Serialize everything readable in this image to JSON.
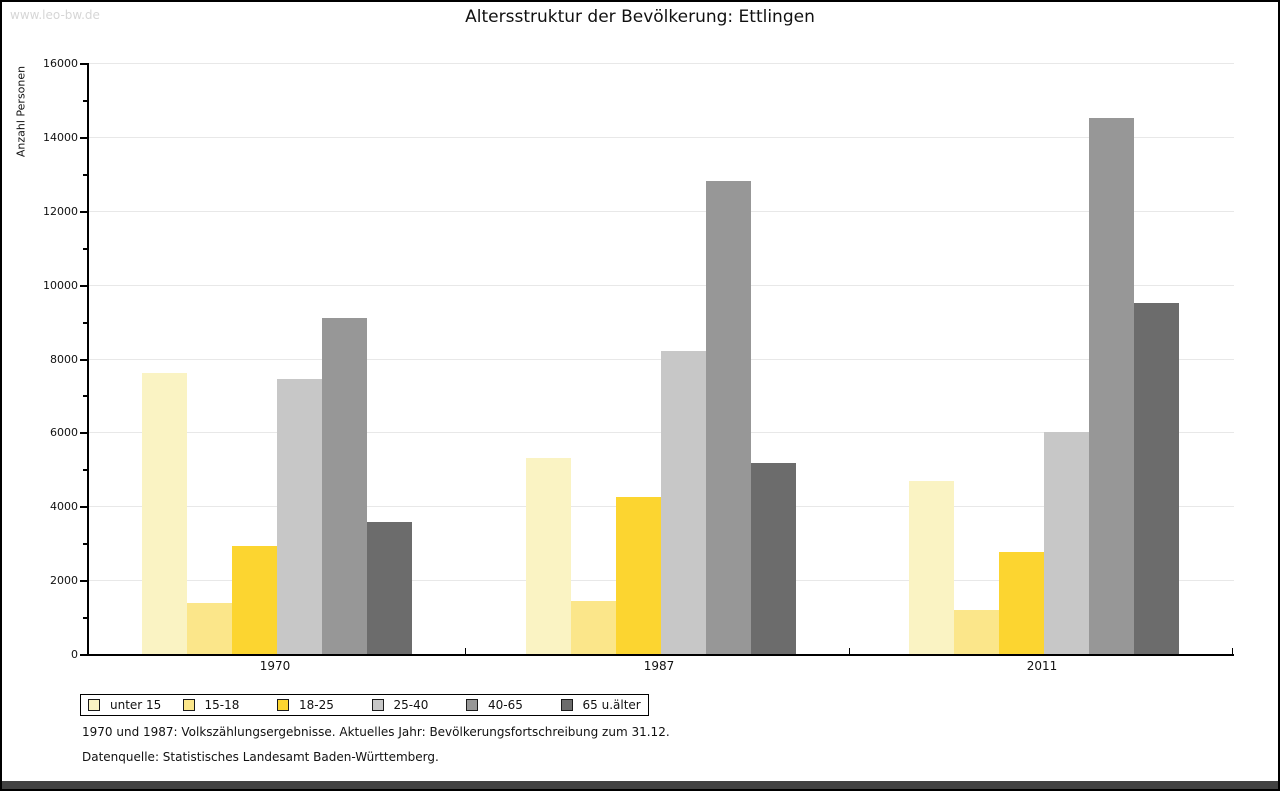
{
  "watermark": "www.leo-bw.de",
  "title": "Altersstruktur der Bevölkerung: Ettlingen",
  "chart_data": {
    "type": "bar",
    "title": "Altersstruktur der Bevölkerung: Ettlingen",
    "xlabel": "",
    "ylabel": "Anzahl Personen",
    "categories": [
      "1970",
      "1987",
      "2011"
    ],
    "series": [
      {
        "name": "unter 15",
        "color": "#FAF3C3",
        "values": [
          7600,
          5300,
          4690
        ]
      },
      {
        "name": "15-18",
        "color": "#FBE68A",
        "values": [
          1380,
          1430,
          1200
        ]
      },
      {
        "name": "18-25",
        "color": "#FCD530",
        "values": [
          2930,
          4250,
          2750
        ]
      },
      {
        "name": "25-40",
        "color": "#C7C7C7",
        "values": [
          7450,
          8200,
          6000
        ]
      },
      {
        "name": "40-65",
        "color": "#979797",
        "values": [
          9100,
          12800,
          14500
        ]
      },
      {
        "name": "65 u.älter",
        "color": "#6C6C6C",
        "values": [
          3580,
          5180,
          9500
        ]
      }
    ],
    "ylim": [
      0,
      16000
    ],
    "ytick_step": 2000,
    "minor_tick_step": 1000,
    "grid": true,
    "legend_position": "bottom"
  },
  "footer": {
    "line1": "1970 und 1987: Volkszählungsergebnisse. Aktuelles Jahr: Bevölkerungsfortschreibung zum 31.12.",
    "line2": "Datenquelle: Statistisches Landesamt Baden-Württemberg."
  }
}
